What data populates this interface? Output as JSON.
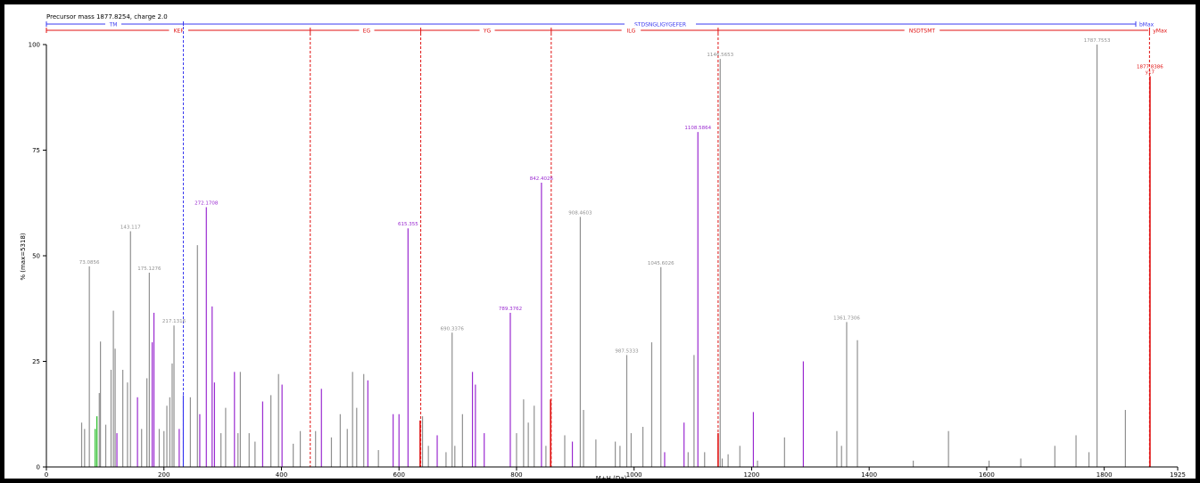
{
  "header": {
    "precursor_text": "Precursor mass 1877.8254, charge 2.0"
  },
  "colors": {
    "b_ion": "#3a3af0",
    "y_ion": "#e01010",
    "matched": "#9a2ad0",
    "unmatched": "#909090",
    "other": "#22bb22"
  },
  "chart_data": {
    "type": "bar",
    "xlabel": "M+H (Da)",
    "ylabel": "% (max=5318)",
    "xlim": [
      0,
      1925
    ],
    "ylim": [
      0,
      100
    ],
    "x_ticks": [
      0,
      200,
      400,
      600,
      800,
      1000,
      1200,
      1400,
      1600,
      1800,
      1925
    ],
    "y_ticks": [
      0,
      25,
      50,
      75,
      100
    ],
    "b_ladder": {
      "sequence_label": "STDSNGLIGYGEFER",
      "start_label": "TM",
      "end_label": "bMax",
      "marks": [
        233
      ]
    },
    "y_ladder": {
      "labels": [
        {
          "text": "KEF",
          "x": 225
        },
        {
          "text": "EG",
          "x": 545
        },
        {
          "text": "YG",
          "x": 750
        },
        {
          "text": "ILG",
          "x": 995
        },
        {
          "text": "NSDTSMT",
          "x": 1490
        },
        {
          "text": "yMax",
          "x": 1895
        }
      ],
      "marks": [
        449,
        637,
        859,
        1143,
        1877
      ]
    },
    "peaks_labeled": [
      {
        "x": 73.0856,
        "y": 47.5,
        "label": "73.0856",
        "color": "unmatched"
      },
      {
        "x": 143.117,
        "y": 55.8,
        "label": "143.117",
        "color": "unmatched"
      },
      {
        "x": 175.1276,
        "y": 46,
        "label": "175.1276",
        "color": "unmatched"
      },
      {
        "x": 217.1316,
        "y": 33.5,
        "label": "217.1316",
        "color": "unmatched"
      },
      {
        "x": 272.1708,
        "y": 61.5,
        "label": "272.1708",
        "color": "matched"
      },
      {
        "x": 615.355,
        "y": 56.5,
        "label": "615.355",
        "color": "matched"
      },
      {
        "x": 690.3376,
        "y": 31.8,
        "label": "690.3376",
        "color": "unmatched"
      },
      {
        "x": 789.3762,
        "y": 36.5,
        "label": "789.3762",
        "color": "matched"
      },
      {
        "x": 842.4026,
        "y": 67.3,
        "label": "842.4026",
        "color": "matched"
      },
      {
        "x": 908.4603,
        "y": 59.2,
        "label": "908.4603",
        "color": "unmatched"
      },
      {
        "x": 987.5333,
        "y": 26.5,
        "label": "987.5333",
        "color": "unmatched"
      },
      {
        "x": 1045.6026,
        "y": 47.3,
        "label": "1045.6026",
        "color": "unmatched"
      },
      {
        "x": 1108.5864,
        "y": 79.3,
        "label": "1108.5864",
        "color": "matched"
      },
      {
        "x": 1146.5653,
        "y": 96.6,
        "label": "1146.5653",
        "color": "unmatched"
      },
      {
        "x": 1361.7306,
        "y": 34.3,
        "label": "1361.7306",
        "color": "unmatched"
      },
      {
        "x": 1787.7553,
        "y": 100,
        "label": "1787.7553",
        "color": "unmatched"
      },
      {
        "x": 1877.8386,
        "y": 92.5,
        "label": "1877.8386",
        "sublabel": "y17",
        "color": "y_ion"
      }
    ],
    "peaks_unlabeled": [
      {
        "x": 60,
        "y": 10.5,
        "color": "unmatched"
      },
      {
        "x": 65,
        "y": 9,
        "color": "unmatched"
      },
      {
        "x": 83,
        "y": 9,
        "color": "other"
      },
      {
        "x": 86,
        "y": 12,
        "color": "other"
      },
      {
        "x": 90,
        "y": 17.5,
        "color": "unmatched"
      },
      {
        "x": 92,
        "y": 29.7,
        "color": "unmatched"
      },
      {
        "x": 101,
        "y": 10,
        "color": "unmatched"
      },
      {
        "x": 110,
        "y": 23,
        "color": "unmatched"
      },
      {
        "x": 114,
        "y": 37,
        "color": "unmatched"
      },
      {
        "x": 117,
        "y": 28,
        "color": "unmatched"
      },
      {
        "x": 120,
        "y": 8,
        "color": "matched"
      },
      {
        "x": 130,
        "y": 23,
        "color": "unmatched"
      },
      {
        "x": 138,
        "y": 20,
        "color": "unmatched"
      },
      {
        "x": 155,
        "y": 16.5,
        "color": "matched"
      },
      {
        "x": 162,
        "y": 9,
        "color": "unmatched"
      },
      {
        "x": 171,
        "y": 21,
        "color": "unmatched"
      },
      {
        "x": 180,
        "y": 29.5,
        "color": "matched"
      },
      {
        "x": 183,
        "y": 36.5,
        "color": "matched"
      },
      {
        "x": 192,
        "y": 9,
        "color": "unmatched"
      },
      {
        "x": 200,
        "y": 8.5,
        "color": "unmatched"
      },
      {
        "x": 205,
        "y": 14.5,
        "color": "unmatched"
      },
      {
        "x": 210,
        "y": 16.5,
        "color": "unmatched"
      },
      {
        "x": 214,
        "y": 24.5,
        "color": "unmatched"
      },
      {
        "x": 226,
        "y": 9,
        "color": "matched"
      },
      {
        "x": 233,
        "y": 17,
        "color": "b_ion"
      },
      {
        "x": 245,
        "y": 16.5,
        "color": "unmatched"
      },
      {
        "x": 257,
        "y": 52.5,
        "color": "unmatched"
      },
      {
        "x": 261,
        "y": 12.5,
        "color": "matched"
      },
      {
        "x": 282,
        "y": 38,
        "color": "matched"
      },
      {
        "x": 286,
        "y": 20,
        "color": "matched"
      },
      {
        "x": 297,
        "y": 8,
        "color": "unmatched"
      },
      {
        "x": 305,
        "y": 14,
        "color": "unmatched"
      },
      {
        "x": 320,
        "y": 22.5,
        "color": "matched"
      },
      {
        "x": 326,
        "y": 8,
        "color": "unmatched"
      },
      {
        "x": 330,
        "y": 22.5,
        "color": "unmatched"
      },
      {
        "x": 345,
        "y": 8,
        "color": "unmatched"
      },
      {
        "x": 355,
        "y": 6,
        "color": "unmatched"
      },
      {
        "x": 368,
        "y": 15.5,
        "color": "matched"
      },
      {
        "x": 382,
        "y": 17,
        "color": "unmatched"
      },
      {
        "x": 395,
        "y": 22,
        "color": "unmatched"
      },
      {
        "x": 401,
        "y": 19.5,
        "color": "matched"
      },
      {
        "x": 420,
        "y": 5.5,
        "color": "unmatched"
      },
      {
        "x": 432,
        "y": 8.5,
        "color": "unmatched"
      },
      {
        "x": 458,
        "y": 8.5,
        "color": "unmatched"
      },
      {
        "x": 468,
        "y": 18.5,
        "color": "matched"
      },
      {
        "x": 485,
        "y": 7,
        "color": "unmatched"
      },
      {
        "x": 500,
        "y": 12.5,
        "color": "unmatched"
      },
      {
        "x": 512,
        "y": 9,
        "color": "unmatched"
      },
      {
        "x": 521,
        "y": 22.5,
        "color": "unmatched"
      },
      {
        "x": 528,
        "y": 14,
        "color": "unmatched"
      },
      {
        "x": 540,
        "y": 22,
        "color": "unmatched"
      },
      {
        "x": 547,
        "y": 20.5,
        "color": "matched"
      },
      {
        "x": 565,
        "y": 4,
        "color": "unmatched"
      },
      {
        "x": 590,
        "y": 12.5,
        "color": "matched"
      },
      {
        "x": 600,
        "y": 12.5,
        "color": "matched"
      },
      {
        "x": 636,
        "y": 11,
        "color": "y_ion"
      },
      {
        "x": 640,
        "y": 12,
        "color": "unmatched"
      },
      {
        "x": 650,
        "y": 5,
        "color": "unmatched"
      },
      {
        "x": 665,
        "y": 7.5,
        "color": "matched"
      },
      {
        "x": 680,
        "y": 3.5,
        "color": "unmatched"
      },
      {
        "x": 695,
        "y": 5,
        "color": "unmatched"
      },
      {
        "x": 708,
        "y": 12.5,
        "color": "unmatched"
      },
      {
        "x": 725,
        "y": 22.5,
        "color": "matched"
      },
      {
        "x": 730,
        "y": 19.5,
        "color": "matched"
      },
      {
        "x": 745,
        "y": 8,
        "color": "matched"
      },
      {
        "x": 800,
        "y": 8,
        "color": "unmatched"
      },
      {
        "x": 812,
        "y": 16,
        "color": "unmatched"
      },
      {
        "x": 820,
        "y": 10.5,
        "color": "unmatched"
      },
      {
        "x": 830,
        "y": 14.5,
        "color": "unmatched"
      },
      {
        "x": 850,
        "y": 5,
        "color": "unmatched"
      },
      {
        "x": 858,
        "y": 16,
        "color": "y_ion"
      },
      {
        "x": 882,
        "y": 7.5,
        "color": "unmatched"
      },
      {
        "x": 895,
        "y": 6,
        "color": "matched"
      },
      {
        "x": 914,
        "y": 13.5,
        "color": "unmatched"
      },
      {
        "x": 935,
        "y": 6.5,
        "color": "unmatched"
      },
      {
        "x": 968,
        "y": 6,
        "color": "unmatched"
      },
      {
        "x": 976,
        "y": 5,
        "color": "unmatched"
      },
      {
        "x": 995,
        "y": 8,
        "color": "unmatched"
      },
      {
        "x": 1015,
        "y": 9.5,
        "color": "unmatched"
      },
      {
        "x": 1030,
        "y": 29.5,
        "color": "unmatched"
      },
      {
        "x": 1052,
        "y": 3.5,
        "color": "matched"
      },
      {
        "x": 1085,
        "y": 10.5,
        "color": "matched"
      },
      {
        "x": 1092,
        "y": 3.5,
        "color": "unmatched"
      },
      {
        "x": 1102,
        "y": 26.5,
        "color": "unmatched"
      },
      {
        "x": 1120,
        "y": 3.5,
        "color": "unmatched"
      },
      {
        "x": 1143,
        "y": 8,
        "color": "y_ion"
      },
      {
        "x": 1150,
        "y": 2,
        "color": "unmatched"
      },
      {
        "x": 1160,
        "y": 3,
        "color": "unmatched"
      },
      {
        "x": 1180,
        "y": 5,
        "color": "unmatched"
      },
      {
        "x": 1203,
        "y": 13,
        "color": "matched"
      },
      {
        "x": 1210,
        "y": 1.5,
        "color": "unmatched"
      },
      {
        "x": 1256,
        "y": 7,
        "color": "unmatched"
      },
      {
        "x": 1288,
        "y": 25,
        "color": "matched"
      },
      {
        "x": 1345,
        "y": 8.5,
        "color": "unmatched"
      },
      {
        "x": 1353,
        "y": 5,
        "color": "unmatched"
      },
      {
        "x": 1380,
        "y": 30,
        "color": "unmatched"
      },
      {
        "x": 1475,
        "y": 1.5,
        "color": "unmatched"
      },
      {
        "x": 1535,
        "y": 8.5,
        "color": "unmatched"
      },
      {
        "x": 1604,
        "y": 1.5,
        "color": "unmatched"
      },
      {
        "x": 1658,
        "y": 2,
        "color": "unmatched"
      },
      {
        "x": 1716,
        "y": 5,
        "color": "unmatched"
      },
      {
        "x": 1752,
        "y": 7.5,
        "color": "unmatched"
      },
      {
        "x": 1774,
        "y": 3.5,
        "color": "unmatched"
      },
      {
        "x": 1836,
        "y": 13.5,
        "color": "unmatched"
      }
    ]
  }
}
